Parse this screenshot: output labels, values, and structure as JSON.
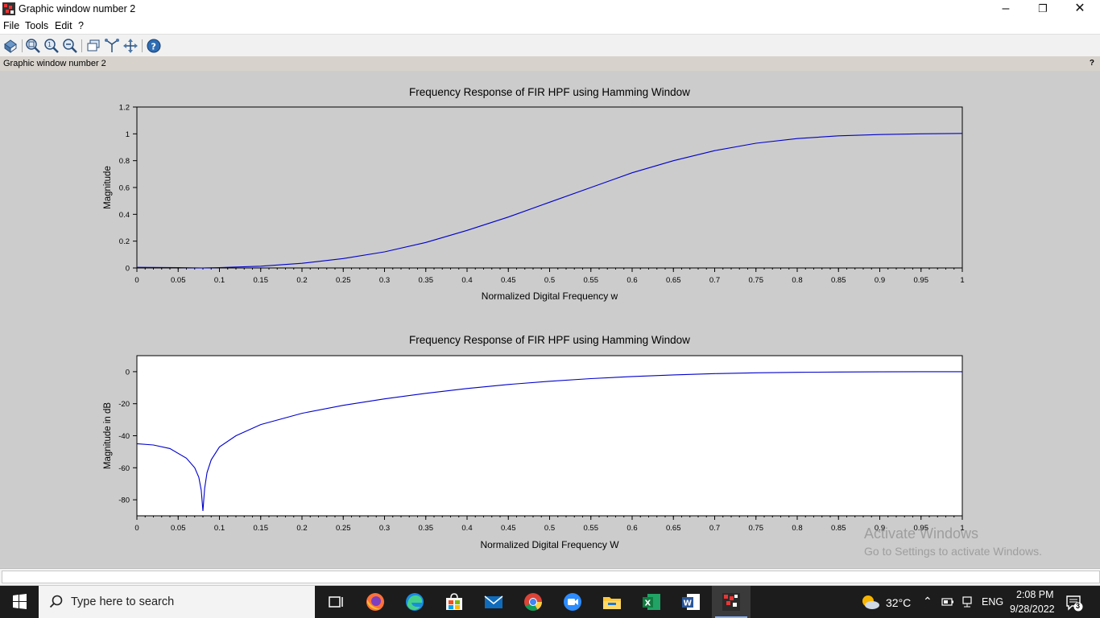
{
  "window": {
    "title": "Graphic window number 2",
    "figure_label": "Graphic window number 2",
    "help_mark": "?"
  },
  "menu": {
    "file": "File",
    "tools": "Tools",
    "edit": "Edit",
    "help": "?"
  },
  "toolbar": {
    "icons": [
      "rotate-icon",
      "zoom-area-icon",
      "zoom-in-icon",
      "zoom-out-icon",
      "new-window-icon",
      "datatip-icon",
      "pan-icon",
      "help-icon"
    ]
  },
  "chart_data": [
    {
      "type": "line",
      "title": "Frequency Response of FIR HPF using Hamming Window",
      "xlabel": "Normalized Digital Frequency w",
      "ylabel": "Magnitude",
      "xlim": [
        0,
        1
      ],
      "ylim": [
        0,
        1.2
      ],
      "xticks": [
        "0",
        "0.05",
        "0.1",
        "0.15",
        "0.2",
        "0.25",
        "0.3",
        "0.35",
        "0.4",
        "0.45",
        "0.5",
        "0.55",
        "0.6",
        "0.65",
        "0.7",
        "0.75",
        "0.8",
        "0.85",
        "0.9",
        "0.95",
        "1"
      ],
      "yticks": [
        "0",
        "0.2",
        "0.4",
        "0.6",
        "0.8",
        "1",
        "1.2"
      ],
      "background": "#cccccc",
      "line_color": "#0000cc",
      "series": [
        {
          "x": [
            0,
            0.05,
            0.08,
            0.1,
            0.15,
            0.2,
            0.25,
            0.3,
            0.35,
            0.4,
            0.45,
            0.5,
            0.55,
            0.6,
            0.65,
            0.7,
            0.75,
            0.8,
            0.85,
            0.9,
            0.95,
            1.0
          ],
          "y": [
            0.005,
            0.003,
            0.0,
            0.003,
            0.013,
            0.035,
            0.07,
            0.12,
            0.19,
            0.28,
            0.38,
            0.49,
            0.6,
            0.71,
            0.8,
            0.875,
            0.93,
            0.965,
            0.985,
            0.995,
            1.0,
            1.003
          ]
        }
      ]
    },
    {
      "type": "line",
      "title": "Frequency Response of FIR HPF using Hamming Window",
      "xlabel": "Normalized Digital Frequency W",
      "ylabel": "Magnitude in dB",
      "xlim": [
        0,
        1
      ],
      "ylim": [
        -90,
        10
      ],
      "xticks": [
        "0",
        "0.05",
        "0.1",
        "0.15",
        "0.2",
        "0.25",
        "0.3",
        "0.35",
        "0.4",
        "0.45",
        "0.5",
        "0.55",
        "0.6",
        "0.65",
        "0.7",
        "0.75",
        "0.8",
        "0.85",
        "0.9",
        "0.95",
        "1"
      ],
      "yticks": [
        "0",
        "-20",
        "-40",
        "-60",
        "-80"
      ],
      "background": "#ffffff",
      "line_color": "#0000cc",
      "series": [
        {
          "x": [
            0,
            0.02,
            0.04,
            0.06,
            0.07,
            0.075,
            0.078,
            0.08,
            0.082,
            0.085,
            0.09,
            0.1,
            0.12,
            0.15,
            0.2,
            0.25,
            0.3,
            0.35,
            0.4,
            0.45,
            0.5,
            0.55,
            0.6,
            0.65,
            0.7,
            0.75,
            0.8,
            0.85,
            0.9,
            0.95,
            1.0
          ],
          "y": [
            -45,
            -45.8,
            -48,
            -54,
            -60,
            -66,
            -74,
            -87,
            -73,
            -63,
            -55,
            -47,
            -40,
            -33,
            -26,
            -21,
            -17,
            -13.5,
            -10.5,
            -8,
            -6,
            -4.3,
            -3,
            -2,
            -1.2,
            -0.7,
            -0.4,
            -0.2,
            -0.1,
            0,
            0
          ]
        }
      ]
    }
  ],
  "status": {
    "watermark_title": "Activate Windows",
    "watermark_sub": "Go to Settings to activate Windows."
  },
  "taskbar": {
    "search_placeholder": "Type here to search",
    "weather": "32°C",
    "language": "ENG",
    "time": "2:08 PM",
    "date": "9/28/2022",
    "notifications": "3",
    "apps": [
      "task-view-icon",
      "firefox-icon",
      "edge-icon",
      "store-icon",
      "mail-icon",
      "chrome-icon",
      "zoom-icon",
      "file-explorer-icon",
      "excel-icon",
      "word-icon",
      "scilab-icon"
    ]
  }
}
